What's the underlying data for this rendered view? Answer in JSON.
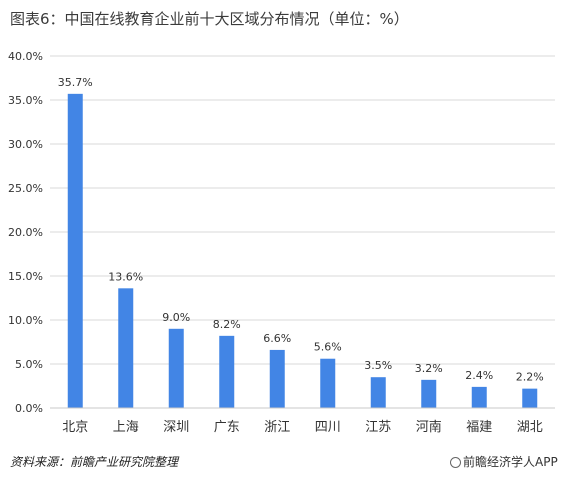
{
  "title": "图表6：中国在线教育企业前十大区域分布情况（单位：%）",
  "source": "资料来源：前瞻产业研究院整理",
  "brand": "前瞻经济学人APP",
  "colors": {
    "bar": "#4285e5",
    "grid": "#d9d9d9",
    "axis": "#c8c8c8",
    "text": "#333333"
  },
  "chart_data": {
    "type": "bar",
    "title": "图表6：中国在线教育企业前十大区域分布情况（单位：%）",
    "categories": [
      "北京",
      "上海",
      "深圳",
      "广东",
      "浙江",
      "四川",
      "江苏",
      "河南",
      "福建",
      "湖北"
    ],
    "values": [
      35.7,
      13.6,
      9.0,
      8.2,
      6.6,
      5.6,
      3.5,
      3.2,
      2.4,
      2.2
    ],
    "data_labels": [
      "35.7%",
      "13.6%",
      "9.0%",
      "8.2%",
      "6.6%",
      "5.6%",
      "3.5%",
      "3.2%",
      "2.4%",
      "2.2%"
    ],
    "yticks": [
      "0.0%",
      "5.0%",
      "10.0%",
      "15.0%",
      "20.0%",
      "25.0%",
      "30.0%",
      "35.0%",
      "40.0%"
    ],
    "ylim": [
      0,
      40
    ],
    "xlabel": "",
    "ylabel": "",
    "grid": true,
    "legend": "none"
  }
}
